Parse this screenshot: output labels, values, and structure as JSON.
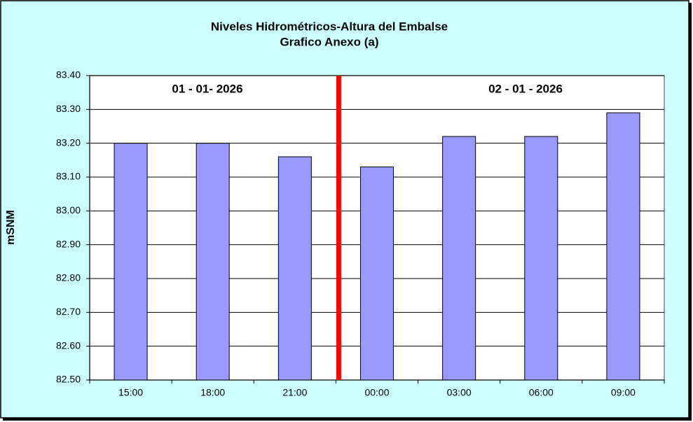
{
  "chart_data": {
    "type": "bar",
    "title": "Niveles Hidrométricos-Altura del Embalse",
    "subtitle": "Grafico Anexo (a)",
    "y_label": "mSNM",
    "categories": [
      "15:00",
      "18:00",
      "21:00",
      "00:00",
      "03:00",
      "06:00",
      "09:00"
    ],
    "values": [
      83.2,
      83.2,
      83.16,
      83.13,
      83.22,
      83.22,
      83.29
    ],
    "color": "#9999ff",
    "ylim": [
      82.5,
      83.4
    ],
    "yticks": [
      {
        "value": 82.5,
        "label": "82.50"
      },
      {
        "value": 82.6,
        "label": "82.60"
      },
      {
        "value": 82.7,
        "label": "82.70"
      },
      {
        "value": 82.8,
        "label": "82.80"
      },
      {
        "value": 82.9,
        "label": "82.90"
      },
      {
        "value": 83.0,
        "label": "83.00"
      },
      {
        "value": 83.1,
        "label": "83.10"
      },
      {
        "value": 83.2,
        "label": "83.20"
      },
      {
        "value": 83.3,
        "label": "83.30"
      },
      {
        "value": 83.4,
        "label": "83.40"
      }
    ],
    "grid": true,
    "annotations": [
      "01 - 01- 2026",
      "02 - 01 - 2026"
    ]
  }
}
